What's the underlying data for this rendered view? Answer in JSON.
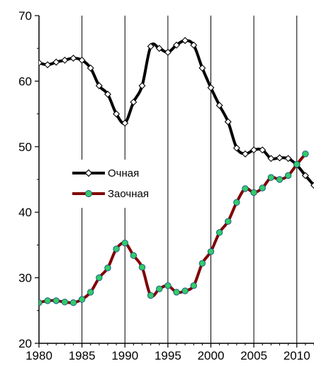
{
  "chart_data": {
    "type": "line",
    "title": "",
    "xlabel": "",
    "ylabel": "",
    "xlim": [
      1980,
      2012
    ],
    "ylim": [
      20,
      70
    ],
    "x_ticks": [
      1980,
      1985,
      1990,
      1995,
      2000,
      2005,
      2010
    ],
    "y_ticks": [
      20,
      30,
      40,
      50,
      60,
      70
    ],
    "grid": {
      "vertical": true,
      "horizontal": false
    },
    "legend": {
      "position": "center-left"
    },
    "series": [
      {
        "name": "Очная",
        "line_color": "#000000",
        "marker": "diamond",
        "marker_fill": "#ffffff",
        "x": [
          1980,
          1981,
          1982,
          1983,
          1984,
          1985,
          1986,
          1987,
          1988,
          1989,
          1990,
          1991,
          1992,
          1993,
          1994,
          1995,
          1996,
          1997,
          1998,
          1999,
          2000,
          2001,
          2002,
          2003,
          2004,
          2005,
          2006,
          2007,
          2008,
          2009,
          2010,
          2011,
          2012
        ],
        "y": [
          62.8,
          62.5,
          62.9,
          63.2,
          63.5,
          63.2,
          62.0,
          59.3,
          58.0,
          55.0,
          53.6,
          56.8,
          59.3,
          65.3,
          65.0,
          64.4,
          65.5,
          66.2,
          65.5,
          62.0,
          59.0,
          56.3,
          53.8,
          49.8,
          48.9,
          49.5,
          49.5,
          48.2,
          48.3,
          48.2,
          47.2,
          45.6,
          44.1
        ]
      },
      {
        "name": "Заочная",
        "line_color": "#800000",
        "marker": "circle",
        "marker_fill": "#33cc66",
        "x": [
          1980,
          1981,
          1982,
          1983,
          1984,
          1985,
          1986,
          1987,
          1988,
          1989,
          1990,
          1991,
          1992,
          1993,
          1994,
          1995,
          1996,
          1997,
          1998,
          1999,
          2000,
          2001,
          2002,
          2003,
          2004,
          2005,
          2006,
          2007,
          2008,
          2009,
          2010,
          2011
        ],
        "y": [
          26.2,
          26.5,
          26.5,
          26.3,
          26.2,
          26.7,
          27.8,
          30.0,
          31.5,
          34.4,
          35.3,
          33.4,
          31.6,
          27.3,
          28.3,
          28.8,
          27.8,
          28.0,
          28.8,
          32.2,
          34.0,
          36.9,
          38.6,
          41.5,
          43.6,
          43.0,
          43.7,
          45.3,
          45.0,
          45.6,
          47.3,
          48.9
        ]
      }
    ]
  }
}
